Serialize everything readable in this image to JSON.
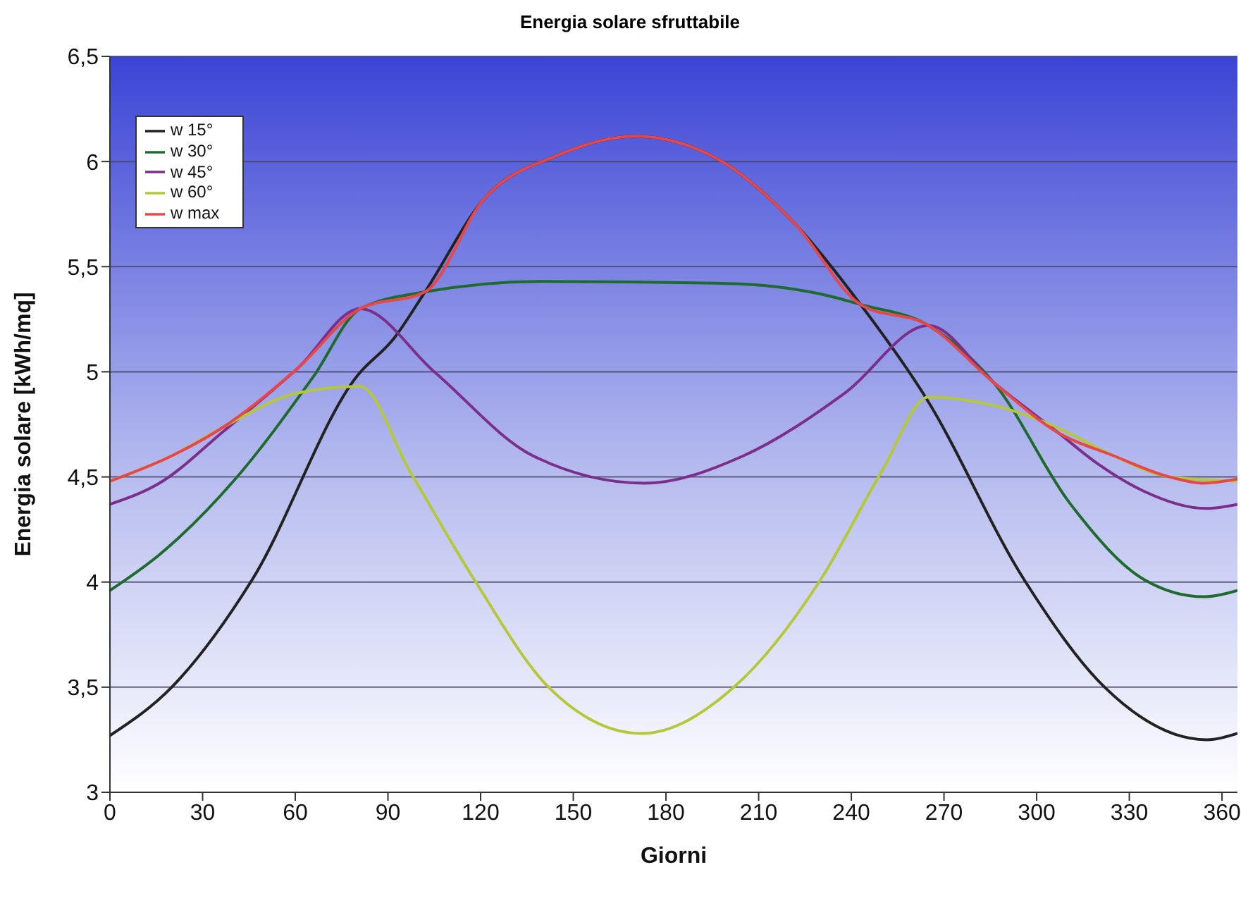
{
  "chart_data": {
    "type": "line",
    "title": "Energia solare sfruttabile",
    "xlabel": "Giorni",
    "ylabel": "Energia solare [kWh/mq]",
    "xlim": [
      0,
      365
    ],
    "xticks": [
      0,
      30,
      60,
      90,
      120,
      150,
      180,
      210,
      240,
      270,
      300,
      330,
      360
    ],
    "ylim": [
      3,
      6.5
    ],
    "yticks": [
      3,
      {
        "value": 3.5,
        "label": "3,5"
      },
      4,
      {
        "value": 4.5,
        "label": "4,5"
      },
      5,
      {
        "value": 5.5,
        "label": "5,5"
      },
      6,
      {
        "value": 6.5,
        "label": "6,5"
      }
    ],
    "grid": "y",
    "legend": "top left",
    "marker": "none",
    "line_style": "solid",
    "series": [
      {
        "name": "w 15°",
        "color": "#222222",
        "x": [
          0,
          20,
          46,
          80,
          92,
          102,
          121,
          145,
          170,
          197,
          222,
          243,
          264,
          296,
          322,
          355,
          365
        ],
        "values": [
          3.27,
          3.5,
          4.01,
          4.98,
          5.16,
          5.38,
          5.82,
          6.03,
          6.12,
          6.01,
          5.7,
          5.32,
          4.88,
          4.01,
          3.5,
          3.25,
          3.28
        ]
      },
      {
        "name": "w 30°",
        "color": "#1f6b2f",
        "x": [
          0,
          16,
          40,
          66,
          81,
          102,
          140,
          200,
          230,
          243,
          265,
          286,
          311,
          335,
          354,
          365
        ],
        "values": [
          3.96,
          4.13,
          4.48,
          4.98,
          5.3,
          5.38,
          5.43,
          5.42,
          5.37,
          5.32,
          5.22,
          4.95,
          4.37,
          4.01,
          3.93,
          3.96
        ]
      },
      {
        "name": "w 45°",
        "color": "#7b2f8a",
        "x": [
          0,
          16,
          37,
          61,
          81,
          105,
          137,
          173,
          205,
          238,
          265,
          286,
          307,
          320,
          335,
          355,
          365
        ],
        "values": [
          4.37,
          4.47,
          4.72,
          5.02,
          5.3,
          5.0,
          4.6,
          4.47,
          4.6,
          4.9,
          5.22,
          4.95,
          4.71,
          4.56,
          4.43,
          4.35,
          4.37
        ]
      },
      {
        "name": "w 60°",
        "color": "#b5c83a",
        "x": [
          0,
          20,
          37,
          61,
          81,
          97,
          118,
          142,
          172,
          202,
          230,
          250,
          265,
          286,
          306,
          325,
          343,
          365
        ],
        "values": [
          4.48,
          4.6,
          4.74,
          4.9,
          4.93,
          4.53,
          4.01,
          3.5,
          3.28,
          3.5,
          4.01,
          4.53,
          4.88,
          4.84,
          4.74,
          4.6,
          4.5,
          4.48
        ]
      },
      {
        "name": "w max",
        "color": "#e8474a",
        "x": [
          0,
          20,
          37,
          61,
          81,
          102,
          121,
          145,
          170,
          197,
          222,
          243,
          265,
          286,
          307,
          325,
          343,
          354,
          365
        ],
        "values": [
          4.48,
          4.6,
          4.74,
          5.02,
          5.3,
          5.38,
          5.82,
          6.03,
          6.12,
          6.01,
          5.7,
          5.32,
          5.22,
          4.95,
          4.71,
          4.6,
          4.5,
          4.47,
          4.49
        ]
      }
    ]
  }
}
